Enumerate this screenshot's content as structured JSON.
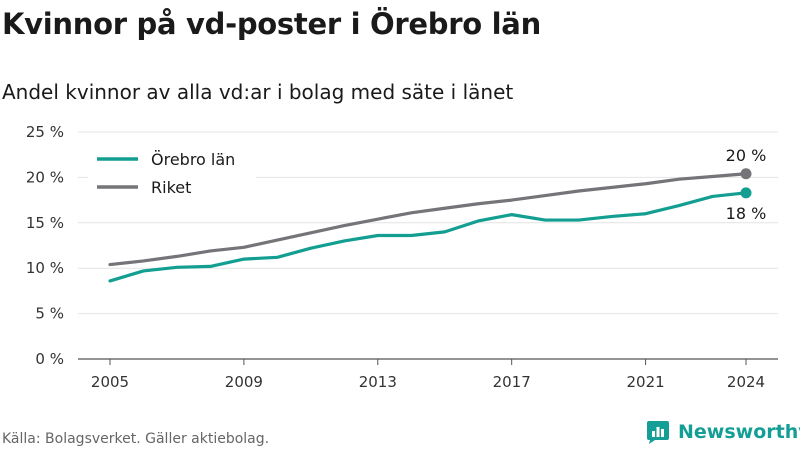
{
  "title": "Kvinnor på vd-poster i Örebro län",
  "subtitle": "Andel kvinnor av alla vd:ar i bolag med säte i länet",
  "source": "Källa: Bolagsverket. Gäller aktiebolag.",
  "brand": {
    "name": "Newsworthy",
    "icon": "newsworthy-logo-icon"
  },
  "colors": {
    "orebro": "#139e92",
    "riket": "#757579",
    "grid": "#e4e4e4",
    "axis": "#555555"
  },
  "chart_data": {
    "type": "line",
    "x": [
      2005,
      2006,
      2007,
      2008,
      2009,
      2010,
      2011,
      2012,
      2013,
      2014,
      2015,
      2016,
      2017,
      2018,
      2019,
      2020,
      2021,
      2022,
      2023,
      2024
    ],
    "series": [
      {
        "name": "Örebro län",
        "color": "#139e92",
        "values": [
          8.6,
          9.7,
          10.1,
          10.2,
          11.0,
          11.2,
          12.2,
          13.0,
          13.6,
          13.6,
          14.0,
          15.2,
          15.9,
          15.3,
          15.3,
          15.7,
          16.0,
          16.9,
          17.9,
          18.3
        ],
        "end_label": "18 %"
      },
      {
        "name": "Riket",
        "color": "#757579",
        "values": [
          10.4,
          10.8,
          11.3,
          11.9,
          12.3,
          13.1,
          13.9,
          14.7,
          15.4,
          16.1,
          16.6,
          17.1,
          17.5,
          18.0,
          18.5,
          18.9,
          19.3,
          19.8,
          20.1,
          20.4
        ],
        "end_label": "20 %"
      }
    ],
    "xticks": [
      "2005",
      "2009",
      "2013",
      "2017",
      "2021",
      "2024"
    ],
    "yticks": [
      0,
      5,
      10,
      15,
      20,
      25
    ],
    "ytick_labels": [
      "0 %",
      "5 %",
      "10 %",
      "15 %",
      "20 %",
      "25 %"
    ],
    "ylim": [
      0,
      25
    ],
    "xlim": [
      2005,
      2024
    ],
    "grid": true,
    "legend": "top-left"
  }
}
